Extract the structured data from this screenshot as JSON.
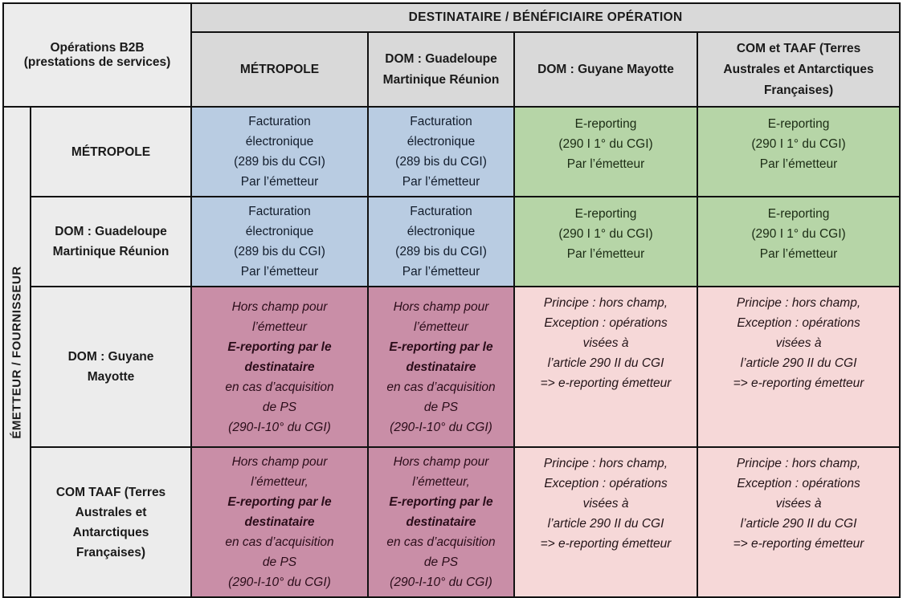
{
  "colors": {
    "header_gray": "#d9d9d9",
    "side_gray": "#ececec",
    "blue": "#b9cce2",
    "green": "#b6d5a7",
    "dark_pink": "#c98ea7",
    "light_pink": "#f6d8d8",
    "border": "#111111"
  },
  "table": {
    "top_header": "DESTINATAIRE / BÉNÉFICIAIRE OPÉRATION",
    "side_label": "ÉMETTEUR / FOURNISSEUR",
    "corner_lines": [
      "Opérations B2B",
      "(prestations de services)"
    ],
    "column_headers": [
      {
        "label": "MÉTROPOLE",
        "lines": [
          "MÉTROPOLE"
        ]
      },
      {
        "label": "DOM : Guadeloupe Martinique Réunion",
        "lines": [
          "DOM : Guadeloupe",
          "Martinique Réunion"
        ]
      },
      {
        "label": "DOM : Guyane Mayotte",
        "lines": [
          "DOM : Guyane Mayotte"
        ]
      },
      {
        "label": "COM et TAAF (Terres Australes et Antarctiques Françaises)",
        "lines": [
          "COM et TAAF (Terres",
          "Australes et Antarctiques",
          "Françaises)"
        ]
      }
    ],
    "rows": [
      {
        "header_lines": [
          "MÉTROPOLE"
        ],
        "cells": [
          {
            "type": "blue",
            "lines": [
              "Facturation",
              "électronique",
              "(289 bis du CGI)",
              "Par l’émetteur"
            ]
          },
          {
            "type": "blue",
            "lines": [
              "Facturation",
              "électronique",
              "(289 bis du CGI)",
              "Par l’émetteur"
            ]
          },
          {
            "type": "green",
            "lines": [
              "E-reporting",
              "(290 I 1° du CGI)",
              "Par l’émetteur"
            ]
          },
          {
            "type": "green",
            "lines": [
              "E-reporting",
              "(290 I 1° du CGI)",
              "Par l’émetteur"
            ]
          }
        ]
      },
      {
        "header_lines": [
          "DOM : Guadeloupe",
          "Martinique Réunion"
        ],
        "cells": [
          {
            "type": "blue",
            "lines": [
              "Facturation",
              "électronique",
              "(289 bis du CGI)",
              "Par l’émetteur"
            ]
          },
          {
            "type": "blue",
            "lines": [
              "Facturation",
              "électronique",
              "(289 bis du CGI)",
              "Par l’émetteur"
            ]
          },
          {
            "type": "green",
            "lines": [
              "E-reporting",
              "(290 I 1° du CGI)",
              "Par l’émetteur"
            ]
          },
          {
            "type": "green",
            "lines": [
              "E-reporting",
              "(290 I 1° du CGI)",
              "Par l’émetteur"
            ]
          }
        ]
      },
      {
        "header_lines": [
          "DOM : Guyane",
          "Mayotte"
        ],
        "cells": [
          {
            "type": "darkpink",
            "lines": [
              "Hors champ pour",
              "l’émetteur",
              {
                "t": "E-reporting par le",
                "b": true
              },
              {
                "t": "destinataire",
                "b": true
              },
              "en cas d’acquisition",
              "de PS",
              "(290-I-10° du CGI)"
            ]
          },
          {
            "type": "darkpink",
            "lines": [
              "Hors champ pour",
              "l’émetteur",
              {
                "t": "E-reporting par le",
                "b": true
              },
              {
                "t": "destinataire",
                "b": true
              },
              "en cas d’acquisition",
              "de PS",
              "(290-I-10° du CGI)"
            ]
          },
          {
            "type": "lightpink",
            "lines": [
              "Principe : hors champ,",
              "Exception : opérations",
              "visées à",
              "l’article 290 II du CGI",
              "=> e-reporting émetteur"
            ]
          },
          {
            "type": "lightpink",
            "lines": [
              "Principe : hors champ,",
              "Exception : opérations",
              "visées à",
              "l’article 290 II du CGI",
              "=> e-reporting émetteur"
            ]
          }
        ]
      },
      {
        "header_lines": [
          "COM TAAF (Terres",
          "Australes et",
          "Antarctiques",
          "Françaises)"
        ],
        "cells": [
          {
            "type": "darkpink",
            "lines": [
              "Hors champ pour",
              "l’émetteur,",
              {
                "t": "E-reporting par le",
                "b": true
              },
              {
                "t": "destinataire",
                "b": true
              },
              "en cas d’acquisition",
              "de PS",
              "(290-I-10° du CGI)"
            ]
          },
          {
            "type": "darkpink",
            "lines": [
              "Hors champ pour",
              "l’émetteur,",
              {
                "t": "E-reporting par le",
                "b": true
              },
              {
                "t": "destinataire",
                "b": true
              },
              "en cas d’acquisition",
              "de PS",
              "(290-I-10° du CGI)"
            ]
          },
          {
            "type": "lightpink",
            "lines": [
              "Principe : hors champ,",
              "Exception : opérations",
              "visées à",
              "l’article 290 II du CGI",
              "=> e-reporting émetteur"
            ]
          },
          {
            "type": "lightpink",
            "lines": [
              "Principe : hors champ,",
              "Exception : opérations",
              "visées à",
              "l’article 290 II du CGI",
              "=> e-reporting émetteur"
            ]
          }
        ]
      }
    ]
  }
}
